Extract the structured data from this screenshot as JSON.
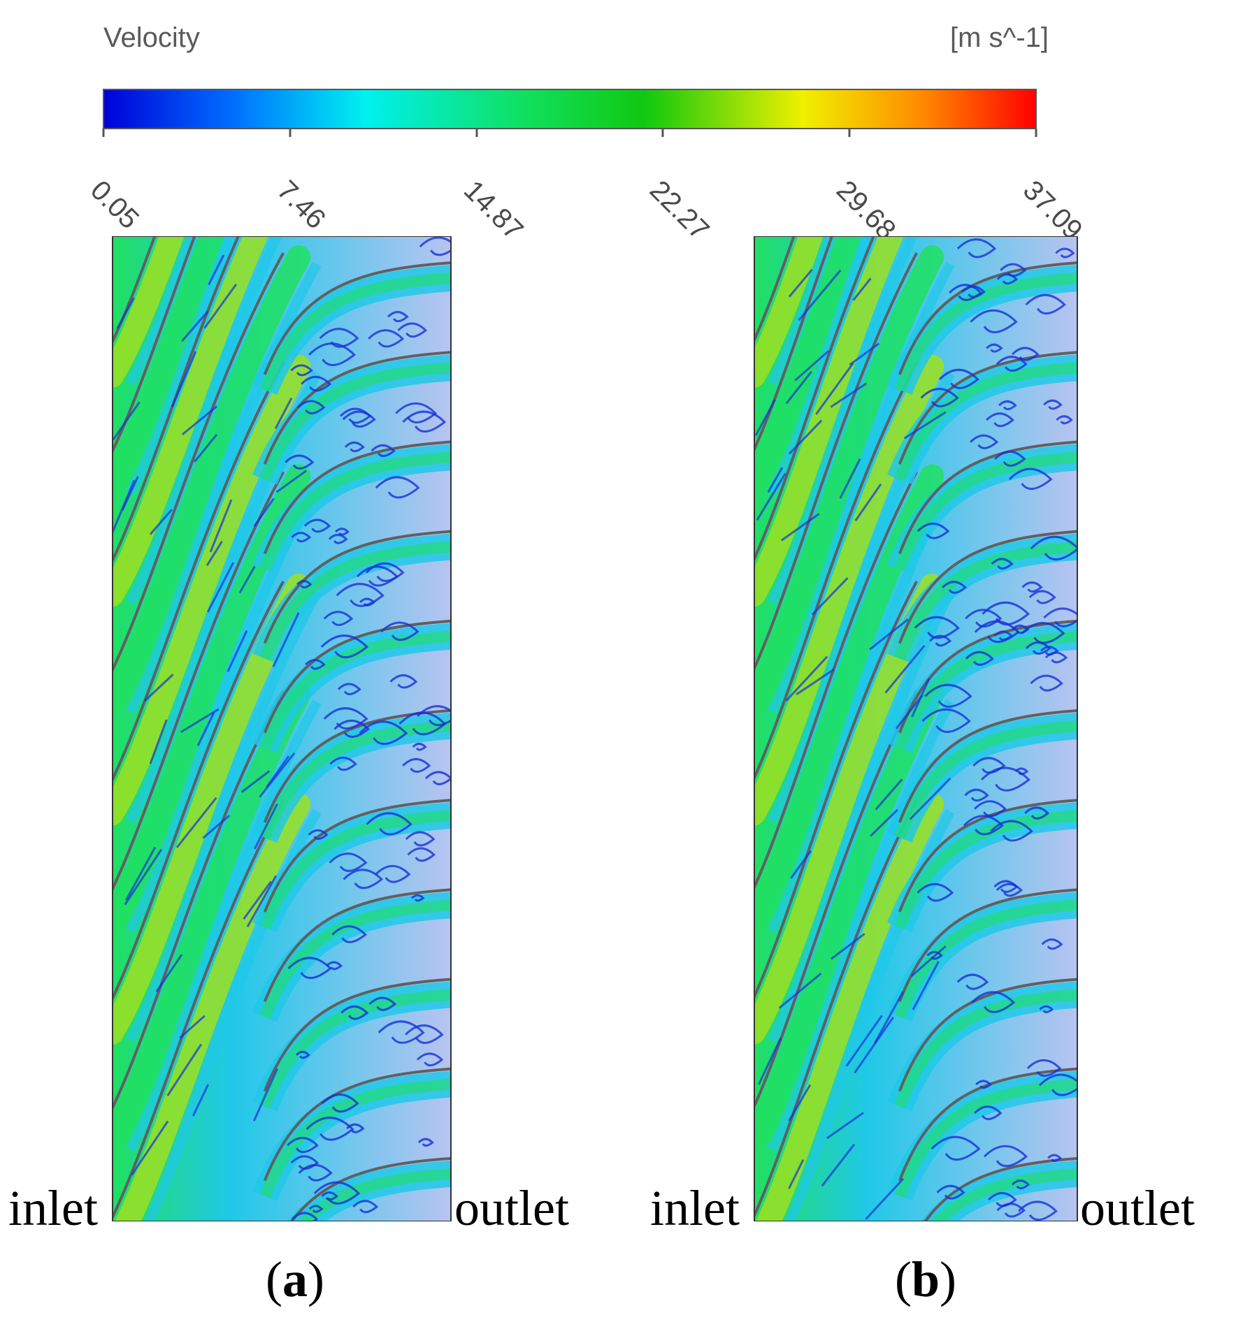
{
  "legend": {
    "title": "Velocity",
    "unit": "[m s^-1]",
    "ticks": [
      "0.05",
      "7.46",
      "14.87",
      "22.27",
      "29.68",
      "37.09"
    ],
    "colors": [
      "#0000d8",
      "#0070ff",
      "#00f0f0",
      "#10e060",
      "#10c810",
      "#f0f000",
      "#ff8800",
      "#ff0000"
    ]
  },
  "panels": [
    {
      "inlet": "inlet",
      "outlet": "outlet",
      "letter": "a"
    },
    {
      "inlet": "inlet",
      "outlet": "outlet",
      "letter": "b"
    }
  ],
  "colors": {
    "background_fluid": "#b8c4f0",
    "slow": "#1830d8",
    "mid": "#20c8e8",
    "fast": "#20e060",
    "fastest": "#9ee020",
    "blade": "#606060"
  }
}
